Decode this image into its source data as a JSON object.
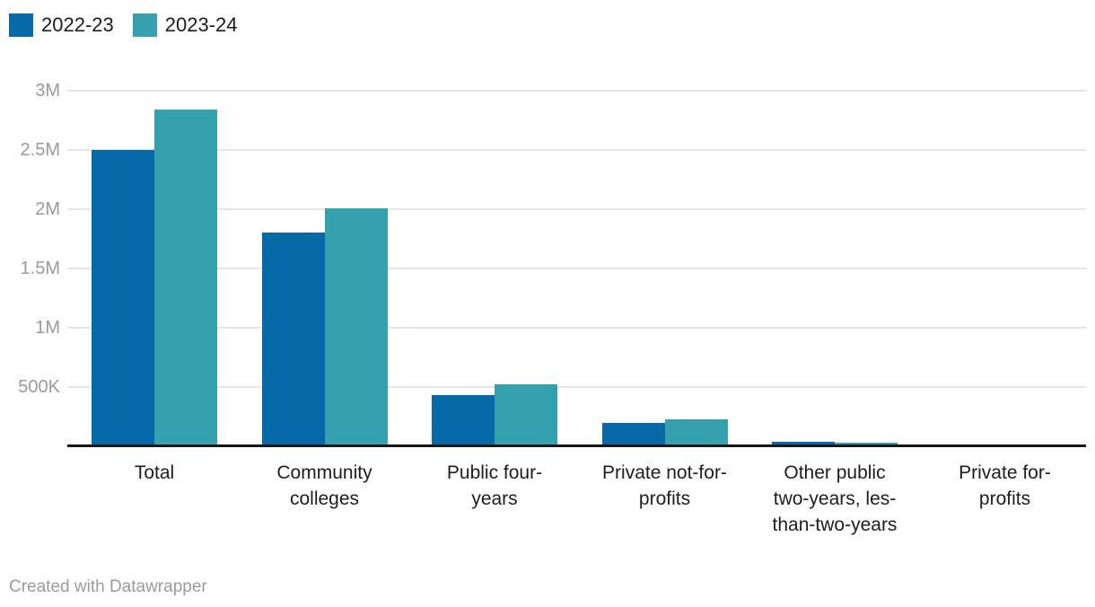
{
  "legend": {
    "items": [
      {
        "label": "2022-23",
        "color": "#076aa8"
      },
      {
        "label": "2023-24",
        "color": "#35a1ae"
      }
    ]
  },
  "chart_data": {
    "type": "bar",
    "title": "",
    "categories": [
      "Total",
      "Community colleges",
      "Public four-years",
      "Private not-for-profits",
      "Other public two-years, less-than-two-years",
      "Private for-profits"
    ],
    "category_label_lines": [
      "Total",
      "Community\ncolleges",
      "Public four-\nyears",
      "Private not-for-\nprofits",
      "Other public\ntwo-years, les-\nthan-two-years",
      "Private for-\nprofits"
    ],
    "series": [
      {
        "name": "2022-23",
        "color": "#076aa8",
        "values": [
          2500000,
          1800000,
          435000,
          200000,
          38000,
          2000
        ]
      },
      {
        "name": "2023-24",
        "color": "#35a1ae",
        "values": [
          2840000,
          2010000,
          520000,
          225000,
          30000,
          2000
        ]
      }
    ],
    "y_ticks": [
      {
        "value": 500000,
        "label": "500K"
      },
      {
        "value": 1000000,
        "label": "1M"
      },
      {
        "value": 1500000,
        "label": "1.5M"
      },
      {
        "value": 2000000,
        "label": "2M"
      },
      {
        "value": 2500000,
        "label": "2.5M"
      },
      {
        "value": 3000000,
        "label": "3M"
      }
    ],
    "ylim": [
      0,
      3000000
    ],
    "grid": "horizontal",
    "legend_position": "top-left"
  },
  "colors": {
    "grid": "#e6e6e6",
    "axis": "#161616",
    "tick_label": "#9a9a9a",
    "category_label": "#1d1d1d",
    "background": "#ffffff"
  },
  "footer": {
    "text": "Created with Datawrapper"
  }
}
